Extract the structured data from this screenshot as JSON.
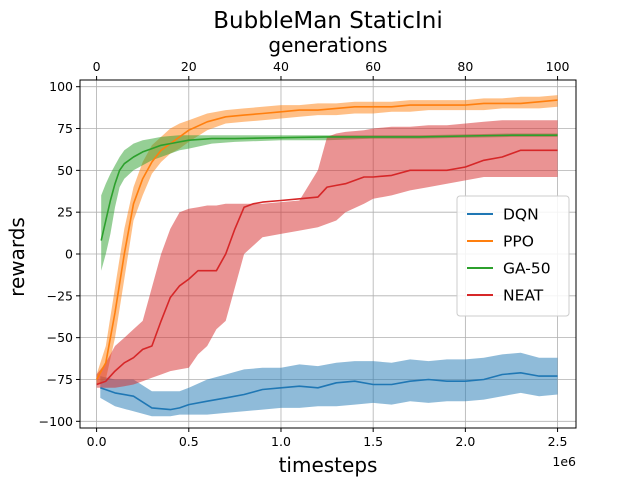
{
  "chart_data": {
    "type": "line",
    "title": "BubbleMan StaticIni",
    "xlabel": "timesteps",
    "ylabel": "rewards",
    "x2label": "generations",
    "x_exponent_label": "1e6",
    "xlim": [
      -0.09,
      2.6
    ],
    "ylim": [
      -104,
      104
    ],
    "x2lim": [
      0,
      100
    ],
    "grid": true,
    "legend_position": "center-right",
    "x_ticks": [
      0.0,
      0.5,
      1.0,
      1.5,
      2.0,
      2.5
    ],
    "x_tick_labels": [
      "0.0",
      "0.5",
      "1.0",
      "1.5",
      "2.0",
      "2.5"
    ],
    "y_ticks": [
      -100,
      -75,
      -50,
      -25,
      0,
      25,
      50,
      75,
      100
    ],
    "y_tick_labels": [
      "−100",
      "−75",
      "−50",
      "−25",
      "0",
      "25",
      "50",
      "75",
      "100"
    ],
    "x2_ticks": [
      0,
      20,
      40,
      60,
      80,
      100
    ],
    "x2_tick_labels": [
      "0",
      "20",
      "40",
      "60",
      "80",
      "100"
    ],
    "series": [
      {
        "name": "DQN",
        "color": "#1f77b4",
        "band_color": "#1f77b4",
        "axis": "timesteps",
        "x": [
          0.02,
          0.1,
          0.2,
          0.3,
          0.4,
          0.45,
          0.5,
          0.6,
          0.7,
          0.8,
          0.9,
          1.0,
          1.1,
          1.2,
          1.3,
          1.4,
          1.5,
          1.6,
          1.7,
          1.8,
          1.9,
          2.0,
          2.1,
          2.2,
          2.3,
          2.4,
          2.5
        ],
        "mean": [
          -80,
          -83,
          -85,
          -92,
          -93,
          -92,
          -90,
          -88,
          -86,
          -84,
          -81,
          -80,
          -79,
          -80,
          -77,
          -76,
          -78,
          -78,
          -76,
          -75,
          -76,
          -76,
          -75,
          -72,
          -71,
          -73,
          -73
        ],
        "upper": [
          -73,
          -75,
          -75,
          -82,
          -82,
          -82,
          -80,
          -75,
          -72,
          -69,
          -68,
          -68,
          -66,
          -67,
          -65,
          -64,
          -64,
          -65,
          -63,
          -64,
          -63,
          -63,
          -62,
          -60,
          -59,
          -62,
          -62
        ],
        "lower": [
          -86,
          -91,
          -94,
          -97,
          -97,
          -96,
          -96,
          -96,
          -95,
          -94,
          -93,
          -92,
          -92,
          -91,
          -91,
          -90,
          -89,
          -90,
          -88,
          -89,
          -88,
          -88,
          -87,
          -85,
          -83,
          -85,
          -84
        ]
      },
      {
        "name": "PPO",
        "color": "#ff7f0e",
        "band_color": "#ff7f0e",
        "axis": "timesteps",
        "x": [
          0.0,
          0.05,
          0.1,
          0.15,
          0.2,
          0.25,
          0.3,
          0.35,
          0.4,
          0.45,
          0.5,
          0.6,
          0.7,
          0.8,
          0.9,
          1.0,
          1.1,
          1.2,
          1.3,
          1.4,
          1.5,
          1.6,
          1.7,
          1.8,
          1.9,
          2.0,
          2.1,
          2.2,
          2.3,
          2.4,
          2.5
        ],
        "mean": [
          -75,
          -65,
          -35,
          0,
          30,
          45,
          55,
          62,
          66,
          70,
          74,
          79,
          82,
          83,
          84,
          85,
          86,
          86,
          87,
          88,
          88,
          88,
          89,
          89,
          89,
          89,
          90,
          90,
          90,
          91,
          92
        ],
        "upper": [
          -72,
          -55,
          -20,
          15,
          40,
          55,
          65,
          70,
          75,
          78,
          80,
          84,
          86,
          87,
          88,
          89,
          89,
          90,
          90,
          91,
          91,
          91,
          92,
          92,
          92,
          92,
          93,
          93,
          94,
          94,
          95
        ],
        "lower": [
          -78,
          -75,
          -50,
          -15,
          20,
          35,
          48,
          55,
          60,
          63,
          67,
          74,
          78,
          79,
          80,
          81,
          82,
          83,
          83,
          84,
          84,
          85,
          85,
          86,
          86,
          86,
          86,
          87,
          87,
          87,
          88
        ]
      },
      {
        "name": "GA-50",
        "color": "#2ca02c",
        "band_color": "#2ca02c",
        "axis": "generations",
        "x": [
          1,
          2,
          3,
          4,
          5,
          6,
          8,
          10,
          12,
          14,
          16,
          18,
          20,
          25,
          30,
          40,
          50,
          60,
          70,
          80,
          90,
          100
        ],
        "mean": [
          8,
          20,
          32,
          42,
          50,
          54,
          58,
          61,
          63,
          65,
          66,
          67,
          68,
          69,
          69,
          69.5,
          70,
          70,
          70,
          70.5,
          71,
          71
        ],
        "upper": [
          35,
          42,
          48,
          53,
          58,
          62,
          66,
          68,
          69,
          70,
          70.5,
          71,
          71,
          71,
          71,
          71,
          71,
          71,
          71,
          71.5,
          72,
          72
        ],
        "lower": [
          -10,
          0,
          12,
          28,
          40,
          45,
          50,
          53,
          56,
          58,
          60,
          62,
          63,
          66,
          67,
          68,
          68,
          69,
          69,
          69.5,
          70,
          70
        ]
      },
      {
        "name": "NEAT",
        "color": "#d62728",
        "band_color": "#d62728",
        "axis": "generations",
        "x": [
          0,
          2,
          4,
          6,
          8,
          10,
          12,
          14,
          16,
          18,
          20,
          22,
          24,
          26,
          28,
          30,
          32,
          34,
          36,
          40,
          44,
          48,
          50,
          52,
          54,
          58,
          60,
          64,
          68,
          72,
          76,
          80,
          84,
          88,
          92,
          96,
          100
        ],
        "mean": [
          -78,
          -76,
          -70,
          -65,
          -62,
          -57,
          -55,
          -40,
          -26,
          -19,
          -15,
          -10,
          -10,
          -10,
          0,
          15,
          28,
          30,
          31,
          32,
          33,
          34,
          40,
          41,
          42,
          46,
          46,
          47,
          50,
          50,
          50,
          52,
          56,
          58,
          62,
          62,
          62
        ],
        "upper": [
          -72,
          -65,
          -55,
          -50,
          -45,
          -40,
          -20,
          0,
          15,
          25,
          27,
          28,
          29,
          29,
          30,
          30,
          30,
          30,
          30,
          31,
          32,
          50,
          70,
          72,
          73,
          74,
          75,
          76,
          76,
          77,
          77,
          78,
          79,
          80,
          80,
          80,
          80
        ],
        "lower": [
          -80,
          -80,
          -80,
          -79,
          -78,
          -76,
          -74,
          -72,
          -70,
          -69,
          -68,
          -60,
          -55,
          -45,
          -40,
          -20,
          0,
          5,
          10,
          12,
          14,
          16,
          18,
          20,
          25,
          30,
          33,
          35,
          38,
          40,
          42,
          44,
          46,
          46,
          46,
          46,
          46
        ]
      }
    ]
  }
}
